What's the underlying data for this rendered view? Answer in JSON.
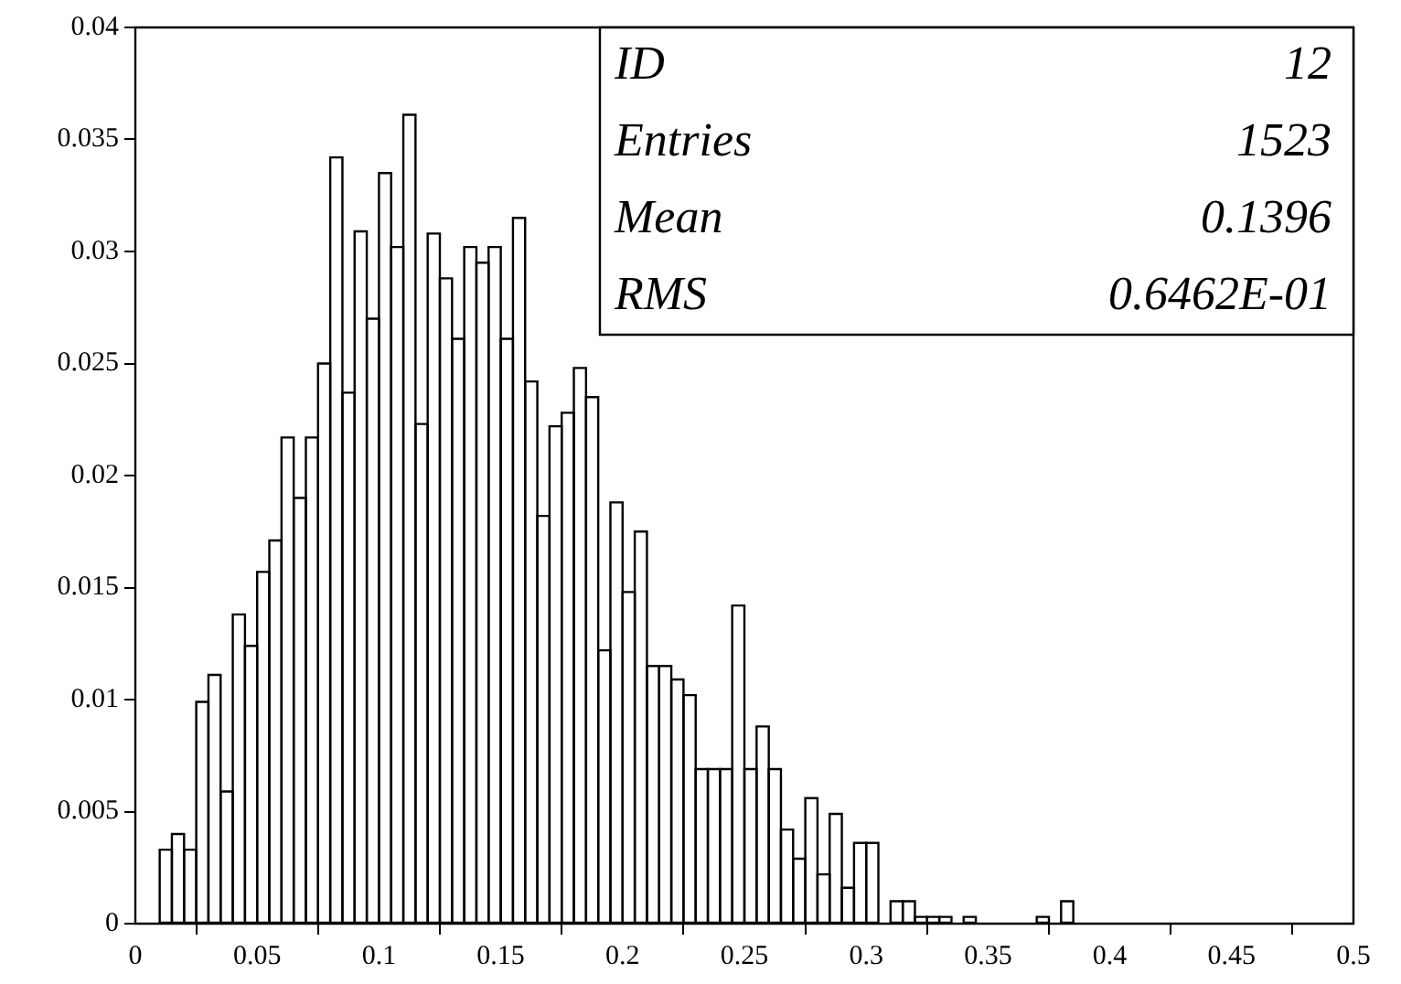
{
  "chart_data": {
    "type": "histogram",
    "bins": [
      0,
      0.005,
      0.01,
      0.015,
      0.02,
      0.025,
      0.03,
      0.035,
      0.04,
      0.045,
      0.05,
      0.055,
      0.06,
      0.065,
      0.07,
      0.075,
      0.08,
      0.085,
      0.09,
      0.095,
      0.1,
      0.105,
      0.11,
      0.115,
      0.12,
      0.125,
      0.13,
      0.135,
      0.14,
      0.145,
      0.15,
      0.155,
      0.16,
      0.165,
      0.17,
      0.175,
      0.18,
      0.185,
      0.19,
      0.195,
      0.2,
      0.205,
      0.21,
      0.215,
      0.22,
      0.225,
      0.23,
      0.235,
      0.24,
      0.245,
      0.25,
      0.255,
      0.26,
      0.265,
      0.27,
      0.275,
      0.28,
      0.285,
      0.29,
      0.295,
      0.3,
      0.305,
      0.31,
      0.315,
      0.32,
      0.325,
      0.33,
      0.335,
      0.34,
      0.345,
      0.35,
      0.355,
      0.36,
      0.365,
      0.37,
      0.375,
      0.38,
      0.385,
      0.39,
      0.395,
      0.4,
      0.405,
      0.41,
      0.415,
      0.42,
      0.425,
      0.43,
      0.435,
      0.44,
      0.445,
      0.45,
      0.455,
      0.46,
      0.465,
      0.47,
      0.475,
      0.48,
      0.485,
      0.49,
      0.495,
      0.5
    ],
    "values": [
      0,
      0,
      0.0033,
      0.004,
      0.0033,
      0.0099,
      0.0111,
      0.0059,
      0.0138,
      0.0124,
      0.0157,
      0.0171,
      0.0217,
      0.019,
      0.0217,
      0.025,
      0.0342,
      0.0237,
      0.0309,
      0.027,
      0.0335,
      0.0302,
      0.0361,
      0.0223,
      0.0308,
      0.0288,
      0.0261,
      0.0302,
      0.0295,
      0.0302,
      0.0261,
      0.0315,
      0.0242,
      0.0182,
      0.0222,
      0.0228,
      0.0248,
      0.0235,
      0.0122,
      0.0188,
      0.0148,
      0.0175,
      0.0115,
      0.0115,
      0.0109,
      0.0102,
      0.0069,
      0.0069,
      0.0069,
      0.0142,
      0.0069,
      0.0088,
      0.0069,
      0.0042,
      0.0029,
      0.0056,
      0.0022,
      0.0049,
      0.0016,
      0.0036,
      0.0036,
      0,
      0.001,
      0.001,
      0.0003,
      0.0003,
      0.0003,
      0,
      0.0003,
      0,
      0,
      0,
      0,
      0,
      0.0003,
      0,
      0.001,
      0,
      0,
      0,
      0,
      0,
      0,
      0,
      0,
      0,
      0,
      0,
      0,
      0,
      0,
      0,
      0,
      0,
      0,
      0,
      0,
      0,
      0,
      0
    ],
    "color": "#000000",
    "xlim": [
      0,
      0.5
    ],
    "xticks": [
      0,
      0.05,
      0.1,
      0.15,
      0.2,
      0.25,
      0.3,
      0.35,
      0.4,
      0.45,
      0.5
    ],
    "ylim": [
      0,
      0.04
    ],
    "yticks": [
      0,
      0.005,
      0.01,
      0.015,
      0.02,
      0.025,
      0.03,
      0.035,
      0.04
    ],
    "grid": false,
    "legend": false,
    "annotations": [
      "ID",
      "12",
      "Entries",
      "1523",
      "Mean",
      "0.1396",
      "RMS",
      "0.6462E-01"
    ]
  }
}
